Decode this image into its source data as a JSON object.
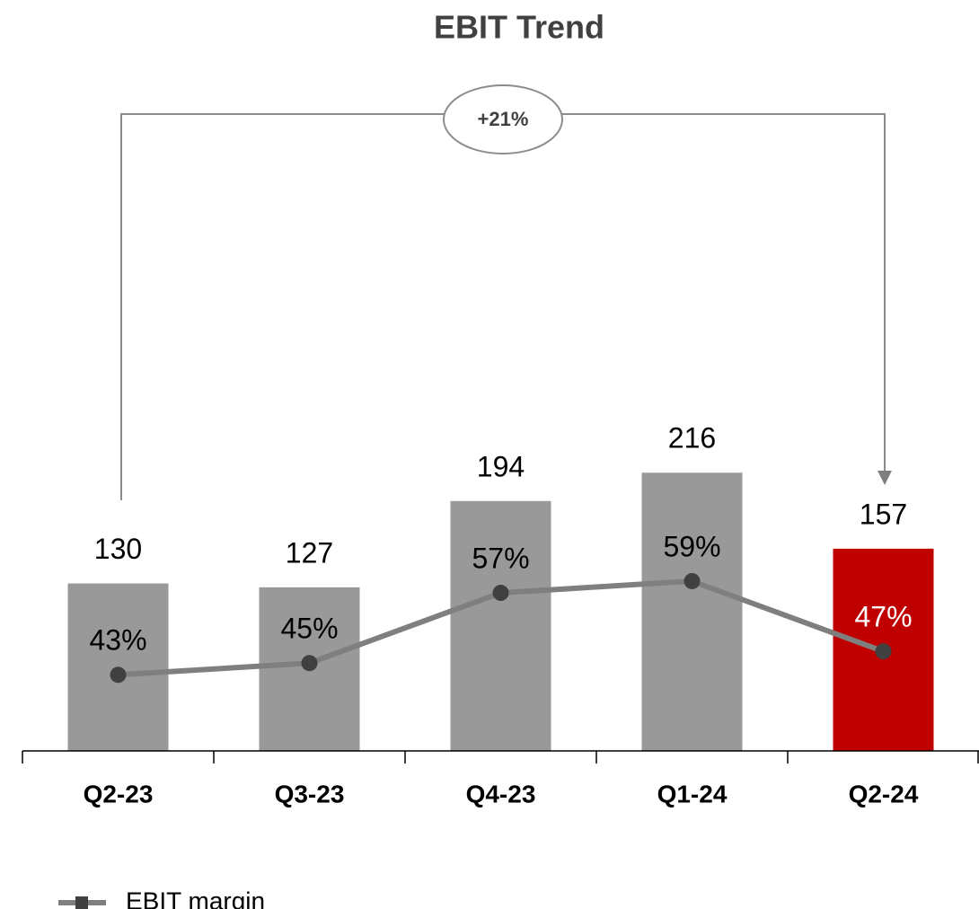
{
  "chart_data": {
    "type": "bar_line",
    "title": "EBIT Trend",
    "categories": [
      "Q2-23",
      "Q3-23",
      "Q4-23",
      "Q1-24",
      "Q2-24"
    ],
    "values": [
      130,
      127,
      194,
      216,
      157
    ],
    "colors": [
      "#999999",
      "#999999",
      "#999999",
      "#999999",
      "#c00000"
    ],
    "ylim": [
      0,
      500
    ],
    "series": [
      {
        "name": "EBIT margin",
        "color": "#7f7f7f",
        "marker_color": "#404040",
        "axis": "y2",
        "values": [
          43,
          45,
          57,
          59,
          47
        ],
        "value_labels": [
          "43%",
          "45%",
          "57%",
          "59%",
          "47%"
        ],
        "label_colors": [
          "#000000",
          "#000000",
          "#000000",
          "#000000",
          "#ffffff"
        ]
      }
    ],
    "y2lim": [
      30,
      140
    ],
    "annotation": "+21%",
    "legend": "bottom-left"
  }
}
